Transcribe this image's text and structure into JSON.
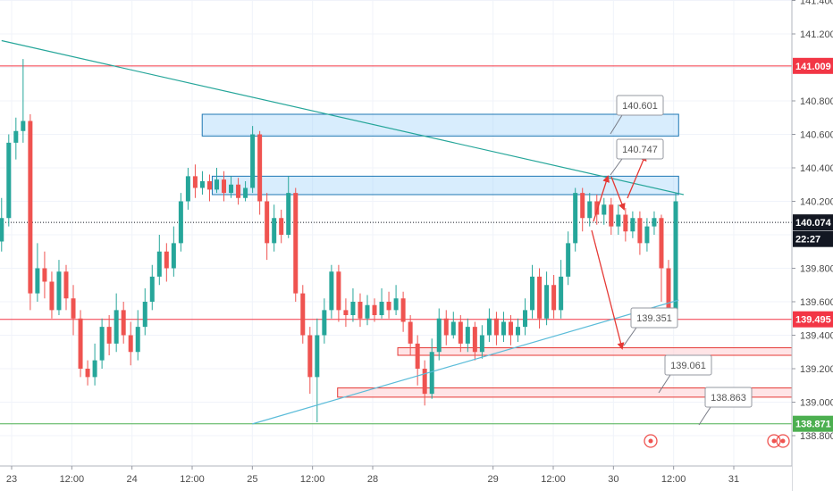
{
  "chart_data": {
    "type": "candlestick",
    "symbol_pair": "price chart",
    "y_axis": {
      "range": [
        138.72,
        141.46
      ],
      "ticks": [
        "141.400",
        "141.200",
        "140.800",
        "140.600",
        "140.400",
        "140.200",
        "139.800",
        "139.600",
        "139.400",
        "139.200",
        "139.000",
        "138.800"
      ],
      "position": "right"
    },
    "x_axis": {
      "labels": [
        {
          "text": "23",
          "t": 0
        },
        {
          "text": "12:00",
          "t": 12
        },
        {
          "text": "24",
          "t": 24
        },
        {
          "text": "12:00",
          "t": 36
        },
        {
          "text": "25",
          "t": 48
        },
        {
          "text": "12:00",
          "t": 60
        },
        {
          "text": "28",
          "t": 72
        },
        {
          "text": "29",
          "t": 96
        },
        {
          "text": "12:00",
          "t": 108
        },
        {
          "text": "30",
          "t": 120
        },
        {
          "text": "12:00",
          "t": 132
        },
        {
          "text": "31",
          "t": 144
        }
      ]
    },
    "price_tags": [
      {
        "value": "141.009",
        "price": 141.009,
        "color": "#f23645"
      },
      {
        "value": "140.074",
        "price": 140.074,
        "color": "#131722"
      },
      {
        "value": "22:27",
        "price": 139.975,
        "color": "#131722"
      },
      {
        "value": "139.495",
        "price": 139.495,
        "color": "#f23645"
      },
      {
        "value": "138.871",
        "price": 138.871,
        "color": "#4caf50"
      }
    ],
    "horizontal_lines": [
      {
        "price": 141.009,
        "color": "#f23645",
        "style": "solid"
      },
      {
        "price": 139.495,
        "color": "#f23645",
        "style": "solid"
      },
      {
        "price": 140.074,
        "color": "#131722",
        "style": "dotted"
      },
      {
        "price": 138.871,
        "color": "#4caf50",
        "style": "solid"
      }
    ],
    "trend_lines": [
      {
        "from": [
          -2,
          141.16
        ],
        "to": [
          134,
          140.24
        ],
        "color": "#26a69a"
      },
      {
        "from": [
          48,
          138.87
        ],
        "to": [
          133,
          139.61
        ],
        "color": "#5bbcd9"
      }
    ],
    "zones": [
      {
        "t1": 38,
        "t2": 133,
        "p1": 140.72,
        "p2": 140.59,
        "color": "blue"
      },
      {
        "t1": 40,
        "t2": 133,
        "p1": 140.35,
        "p2": 140.24,
        "color": "blue"
      },
      {
        "t1": 77,
        "t2": 156,
        "p1": 139.325,
        "p2": 139.28,
        "color": "red"
      },
      {
        "t1": 65,
        "t2": 156,
        "p1": 139.085,
        "p2": 139.03,
        "color": "red"
      }
    ],
    "callouts": [
      {
        "text": "140.601",
        "price": 140.601
      },
      {
        "text": "140.747",
        "price": 140.747
      },
      {
        "text": "139.351",
        "price": 139.351
      },
      {
        "text": "139.061",
        "price": 139.061
      },
      {
        "text": "138.863",
        "price": 138.863
      }
    ],
    "candles": [
      [
        139.96,
        140.1,
        140.22,
        139.9
      ],
      [
        140.1,
        140.55,
        140.6,
        140.05
      ],
      [
        140.55,
        140.62,
        140.7,
        140.45
      ],
      [
        140.62,
        140.68,
        141.05,
        140.55
      ],
      [
        140.68,
        139.65,
        140.72,
        139.55
      ],
      [
        139.65,
        139.8,
        139.95,
        139.6
      ],
      [
        139.8,
        139.72,
        139.9,
        139.62
      ],
      [
        139.72,
        139.55,
        139.78,
        139.5
      ],
      [
        139.55,
        139.78,
        139.85,
        139.52
      ],
      [
        139.78,
        139.62,
        139.82,
        139.55
      ],
      [
        139.62,
        139.5,
        139.7,
        139.4
      ],
      [
        139.5,
        139.2,
        139.55,
        139.15
      ],
      [
        139.2,
        139.15,
        139.25,
        139.1
      ],
      [
        139.15,
        139.25,
        139.35,
        139.1
      ],
      [
        139.25,
        139.45,
        139.5,
        139.2
      ],
      [
        139.45,
        139.35,
        139.52,
        139.28
      ],
      [
        139.35,
        139.55,
        139.65,
        139.3
      ],
      [
        139.55,
        139.4,
        139.6,
        139.35
      ],
      [
        139.4,
        139.3,
        139.48,
        139.22
      ],
      [
        139.3,
        139.45,
        139.55,
        139.25
      ],
      [
        139.45,
        139.6,
        139.68,
        139.4
      ],
      [
        139.6,
        139.75,
        139.82,
        139.55
      ],
      [
        139.75,
        139.9,
        140.0,
        139.7
      ],
      [
        139.9,
        139.8,
        139.95,
        139.72
      ],
      [
        139.8,
        139.95,
        140.05,
        139.75
      ],
      [
        139.95,
        140.2,
        140.25,
        139.9
      ],
      [
        140.2,
        140.35,
        140.4,
        140.15
      ],
      [
        140.35,
        140.28,
        140.42,
        140.22
      ],
      [
        140.28,
        140.32,
        140.38,
        140.24
      ],
      [
        140.32,
        140.27,
        140.36,
        140.2
      ],
      [
        140.27,
        140.33,
        140.4,
        140.25
      ],
      [
        140.33,
        140.25,
        140.38,
        140.2
      ],
      [
        140.25,
        140.3,
        140.35,
        140.22
      ],
      [
        140.3,
        140.22,
        140.34,
        140.18
      ],
      [
        140.22,
        140.28,
        140.32,
        140.2
      ],
      [
        140.28,
        140.6,
        140.65,
        140.25
      ],
      [
        140.6,
        140.2,
        140.62,
        140.12
      ],
      [
        140.2,
        139.95,
        140.25,
        139.85
      ],
      [
        139.95,
        140.1,
        140.18,
        139.9
      ],
      [
        140.1,
        140.0,
        140.15,
        139.95
      ],
      [
        140.0,
        140.25,
        140.35,
        139.98
      ],
      [
        140.25,
        139.65,
        140.28,
        139.6
      ],
      [
        139.65,
        139.4,
        139.7,
        139.35
      ],
      [
        139.4,
        139.15,
        139.45,
        139.05
      ],
      [
        139.15,
        139.4,
        139.5,
        138.88
      ],
      [
        139.4,
        139.55,
        139.62,
        139.35
      ],
      [
        139.55,
        139.78,
        139.82,
        139.5
      ],
      [
        139.78,
        139.55,
        139.82,
        139.48
      ],
      [
        139.55,
        139.52,
        139.62,
        139.45
      ],
      [
        139.52,
        139.6,
        139.68,
        139.48
      ],
      [
        139.6,
        139.5,
        139.65,
        139.45
      ],
      [
        139.5,
        139.58,
        139.64,
        139.46
      ],
      [
        139.58,
        139.52,
        139.62,
        139.48
      ],
      [
        139.52,
        139.6,
        139.68,
        139.5
      ],
      [
        139.6,
        139.55,
        139.66,
        139.5
      ],
      [
        139.55,
        139.62,
        139.7,
        139.52
      ],
      [
        139.62,
        139.48,
        139.66,
        139.42
      ],
      [
        139.48,
        139.35,
        139.52,
        139.28
      ],
      [
        139.35,
        139.2,
        139.4,
        139.1
      ],
      [
        139.2,
        139.05,
        139.25,
        138.98
      ],
      [
        139.05,
        139.3,
        139.38,
        139.02
      ],
      [
        139.3,
        139.5,
        139.56,
        139.25
      ],
      [
        139.5,
        139.4,
        139.55,
        139.34
      ],
      [
        139.4,
        139.48,
        139.54,
        139.38
      ],
      [
        139.48,
        139.35,
        139.52,
        139.3
      ],
      [
        139.35,
        139.45,
        139.5,
        139.3
      ],
      [
        139.45,
        139.3,
        139.48,
        139.25
      ],
      [
        139.3,
        139.4,
        139.46,
        139.26
      ],
      [
        139.4,
        139.5,
        139.56,
        139.36
      ],
      [
        139.5,
        139.4,
        139.54,
        139.34
      ],
      [
        139.4,
        139.48,
        139.54,
        139.36
      ],
      [
        139.48,
        139.4,
        139.52,
        139.34
      ],
      [
        139.4,
        139.45,
        139.5,
        139.36
      ],
      [
        139.45,
        139.55,
        139.62,
        139.4
      ],
      [
        139.55,
        139.75,
        139.82,
        139.5
      ],
      [
        139.75,
        139.5,
        139.8,
        139.44
      ],
      [
        139.5,
        139.7,
        139.78,
        139.46
      ],
      [
        139.7,
        139.55,
        139.76,
        139.5
      ],
      [
        139.55,
        139.75,
        139.85,
        139.5
      ],
      [
        139.75,
        139.95,
        140.02,
        139.7
      ],
      [
        139.95,
        140.25,
        140.28,
        139.9
      ],
      [
        140.25,
        140.1,
        140.28,
        140.02
      ],
      [
        140.1,
        140.2,
        140.25,
        140.05
      ],
      [
        140.2,
        140.12,
        140.24,
        140.06
      ],
      [
        140.12,
        140.18,
        140.22,
        140.06
      ],
      [
        140.18,
        140.05,
        140.22,
        140.0
      ],
      [
        140.05,
        140.12,
        140.18,
        140.0
      ],
      [
        140.12,
        140.02,
        140.16,
        139.96
      ],
      [
        140.02,
        140.1,
        140.14,
        139.98
      ],
      [
        140.1,
        139.95,
        140.14,
        139.88
      ],
      [
        139.95,
        140.05,
        140.1,
        139.9
      ],
      [
        140.05,
        140.1,
        140.14,
        140.0
      ],
      [
        140.1,
        139.8,
        140.12,
        139.6
      ],
      [
        139.8,
        139.55,
        139.85,
        139.48
      ],
      [
        139.55,
        140.2,
        140.25,
        139.5
      ]
    ]
  }
}
